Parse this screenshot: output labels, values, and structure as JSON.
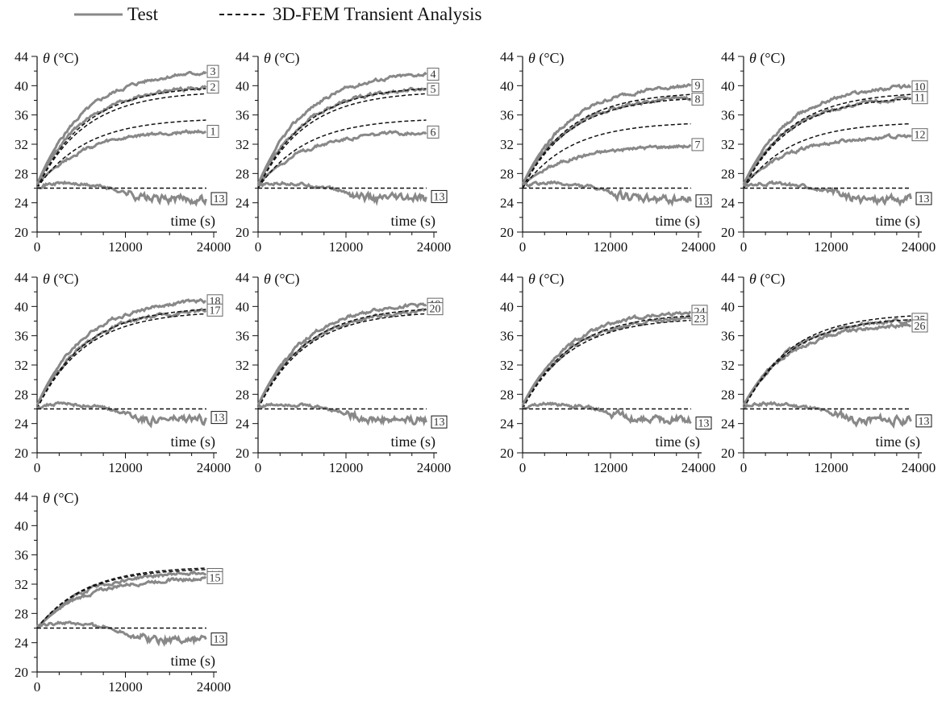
{
  "legend": {
    "test_label": "Test",
    "fem_label": "3D-FEM Transient Analysis"
  },
  "colors": {
    "test": "#888888",
    "fem": "#111111"
  },
  "chart_data": [
    {
      "type": "line",
      "ylabel_symbol": "θ",
      "ylabel_unit": "(°C)",
      "xlabel": "time (s)",
      "xlim": [
        0,
        24000
      ],
      "ylim": [
        20,
        44
      ],
      "xticks": [
        0,
        12000,
        24000
      ],
      "yticks": [
        20,
        24,
        28,
        32,
        36,
        40,
        44
      ],
      "series": [
        {
          "kind": "test",
          "label": "3",
          "start": 26.5,
          "final": 41.8
        },
        {
          "kind": "test",
          "label": "2",
          "start": 26.5,
          "final": 39.8
        },
        {
          "kind": "test",
          "label": "1",
          "start": 26.5,
          "final": 33.8
        },
        {
          "kind": "fem",
          "start": 26.0,
          "final": 39.6
        },
        {
          "kind": "fem",
          "start": 26.0,
          "final": 38.9
        },
        {
          "kind": "fem",
          "start": 26.0,
          "final": 35.3
        },
        {
          "kind": "ambient_test",
          "label": "13",
          "start": 26.3,
          "final": 24.5
        },
        {
          "kind": "ambient_fem",
          "value": 26.0
        }
      ]
    },
    {
      "type": "line",
      "ylabel_symbol": "θ",
      "ylabel_unit": "(°C)",
      "xlabel": "time (s)",
      "xlim": [
        0,
        24000
      ],
      "ylim": [
        20,
        44
      ],
      "xticks": [
        0,
        12000,
        24000
      ],
      "yticks": [
        20,
        24,
        28,
        32,
        36,
        40,
        44
      ],
      "series": [
        {
          "kind": "test",
          "label": "4",
          "start": 26.5,
          "final": 41.6
        },
        {
          "kind": "test",
          "label": "5",
          "start": 26.5,
          "final": 39.6
        },
        {
          "kind": "test",
          "label": "6",
          "start": 26.5,
          "final": 33.7
        },
        {
          "kind": "fem",
          "start": 26.0,
          "final": 39.6
        },
        {
          "kind": "fem",
          "start": 26.0,
          "final": 38.9
        },
        {
          "kind": "fem",
          "start": 26.0,
          "final": 35.3
        },
        {
          "kind": "ambient_test",
          "label": "13",
          "start": 26.3,
          "final": 24.5
        },
        {
          "kind": "ambient_fem",
          "value": 26.0
        }
      ]
    },
    {
      "type": "line",
      "ylabel_symbol": "θ",
      "ylabel_unit": "(°C)",
      "xlabel": "time (s)",
      "xlim": [
        0,
        24000
      ],
      "ylim": [
        20,
        44
      ],
      "xticks": [
        0,
        12000,
        24000
      ],
      "yticks": [
        20,
        24,
        28,
        32,
        36,
        40,
        44
      ],
      "series": [
        {
          "kind": "test",
          "label": "9",
          "start": 26.5,
          "final": 40.0
        },
        {
          "kind": "test",
          "label": "8",
          "start": 26.5,
          "final": 38.3
        },
        {
          "kind": "test",
          "label": "7",
          "start": 26.5,
          "final": 31.8
        },
        {
          "kind": "fem",
          "start": 26.0,
          "final": 38.8
        },
        {
          "kind": "fem",
          "start": 26.0,
          "final": 38.2
        },
        {
          "kind": "fem",
          "start": 26.0,
          "final": 34.8
        },
        {
          "kind": "ambient_test",
          "label": "13",
          "start": 26.3,
          "final": 24.5
        },
        {
          "kind": "ambient_fem",
          "value": 26.0
        }
      ]
    },
    {
      "type": "line",
      "ylabel_symbol": "θ",
      "ylabel_unit": "(°C)",
      "xlabel": "time (s)",
      "xlim": [
        0,
        24000
      ],
      "ylim": [
        20,
        44
      ],
      "xticks": [
        0,
        12000,
        24000
      ],
      "yticks": [
        20,
        24,
        28,
        32,
        36,
        40,
        44
      ],
      "series": [
        {
          "kind": "test",
          "label": "10",
          "start": 26.5,
          "final": 39.9
        },
        {
          "kind": "test",
          "label": "11",
          "start": 26.5,
          "final": 38.2
        },
        {
          "kind": "test",
          "label": "12",
          "start": 26.5,
          "final": 33.1
        },
        {
          "kind": "fem",
          "start": 26.0,
          "final": 38.8
        },
        {
          "kind": "fem",
          "start": 26.0,
          "final": 38.2
        },
        {
          "kind": "fem",
          "start": 26.0,
          "final": 34.8
        },
        {
          "kind": "ambient_test",
          "label": "13",
          "start": 26.3,
          "final": 24.5
        },
        {
          "kind": "ambient_fem",
          "value": 26.0
        }
      ]
    },
    {
      "type": "line",
      "ylabel_symbol": "θ",
      "ylabel_unit": "(°C)",
      "xlabel": "time (s)",
      "xlim": [
        0,
        24000
      ],
      "ylim": [
        20,
        44
      ],
      "xticks": [
        0,
        12000,
        24000
      ],
      "yticks": [
        20,
        24,
        28,
        32,
        36,
        40,
        44
      ],
      "series": [
        {
          "kind": "test",
          "label": "18",
          "start": 26.5,
          "final": 40.8
        },
        {
          "kind": "test",
          "label": "17",
          "start": 26.5,
          "final": 39.4
        },
        {
          "kind": "fem",
          "start": 26.0,
          "final": 39.6
        },
        {
          "kind": "fem",
          "start": 26.0,
          "final": 39.0
        },
        {
          "kind": "ambient_test",
          "label": "13",
          "start": 26.3,
          "final": 24.5
        },
        {
          "kind": "ambient_fem",
          "value": 26.0
        }
      ]
    },
    {
      "type": "line",
      "ylabel_symbol": "θ",
      "ylabel_unit": "(°C)",
      "xlabel": "time (s)",
      "xlim": [
        0,
        24000
      ],
      "ylim": [
        20,
        44
      ],
      "xticks": [
        0,
        12000,
        24000
      ],
      "yticks": [
        20,
        24,
        28,
        32,
        36,
        40,
        44
      ],
      "series": [
        {
          "kind": "test",
          "label": "19",
          "start": 26.5,
          "final": 40.3
        },
        {
          "kind": "test",
          "label": "20",
          "start": 26.5,
          "final": 39.3
        },
        {
          "kind": "fem",
          "start": 26.0,
          "final": 39.6
        },
        {
          "kind": "fem",
          "start": 26.0,
          "final": 39.0
        },
        {
          "kind": "ambient_test",
          "label": "13",
          "start": 26.3,
          "final": 24.5
        },
        {
          "kind": "ambient_fem",
          "value": 26.0
        }
      ]
    },
    {
      "type": "line",
      "ylabel_symbol": "θ",
      "ylabel_unit": "(°C)",
      "xlabel": "time (s)",
      "xlim": [
        0,
        24000
      ],
      "ylim": [
        20,
        44
      ],
      "xticks": [
        0,
        12000,
        24000
      ],
      "yticks": [
        20,
        24,
        28,
        32,
        36,
        40,
        44
      ],
      "series": [
        {
          "kind": "test",
          "label": "24",
          "start": 26.5,
          "final": 39.2
        },
        {
          "kind": "test",
          "label": "23",
          "start": 26.5,
          "final": 38.4
        },
        {
          "kind": "fem",
          "start": 26.0,
          "final": 38.7
        },
        {
          "kind": "fem",
          "start": 26.0,
          "final": 38.1
        },
        {
          "kind": "ambient_test",
          "label": "13",
          "start": 26.3,
          "final": 24.5
        },
        {
          "kind": "ambient_fem",
          "value": 26.0
        }
      ]
    },
    {
      "type": "line",
      "ylabel_symbol": "θ",
      "ylabel_unit": "(°C)",
      "xlabel": "time (s)",
      "xlim": [
        0,
        24000
      ],
      "ylim": [
        20,
        44
      ],
      "xticks": [
        0,
        12000,
        24000
      ],
      "yticks": [
        20,
        24,
        28,
        32,
        36,
        40,
        44
      ],
      "series": [
        {
          "kind": "test",
          "label": "25",
          "start": 26.5,
          "final": 38.1
        },
        {
          "kind": "test",
          "label": "26",
          "start": 26.5,
          "final": 37.5
        },
        {
          "kind": "fem",
          "start": 26.0,
          "final": 38.7
        },
        {
          "kind": "fem",
          "start": 26.0,
          "final": 38.2
        },
        {
          "kind": "ambient_test",
          "label": "13",
          "start": 26.3,
          "final": 24.5
        },
        {
          "kind": "ambient_fem",
          "value": 26.0
        }
      ]
    },
    {
      "type": "line",
      "ylabel_symbol": "θ",
      "ylabel_unit": "(°C)",
      "xlabel": "time (s)",
      "xlim": [
        0,
        24000
      ],
      "ylim": [
        20,
        44
      ],
      "xticks": [
        0,
        12000,
        24000
      ],
      "yticks": [
        20,
        24,
        28,
        32,
        36,
        40,
        44
      ],
      "series": [
        {
          "kind": "test",
          "label": "14",
          "start": 26.0,
          "final": 33.6
        },
        {
          "kind": "test",
          "label": "15",
          "start": 26.0,
          "final": 32.8
        },
        {
          "kind": "fem",
          "start": 26.0,
          "final": 34.2
        },
        {
          "kind": "fem",
          "start": 26.0,
          "final": 34.0
        },
        {
          "kind": "ambient_test",
          "label": "13",
          "start": 26.3,
          "final": 24.5
        },
        {
          "kind": "ambient_fem",
          "value": 26.0
        }
      ]
    }
  ]
}
